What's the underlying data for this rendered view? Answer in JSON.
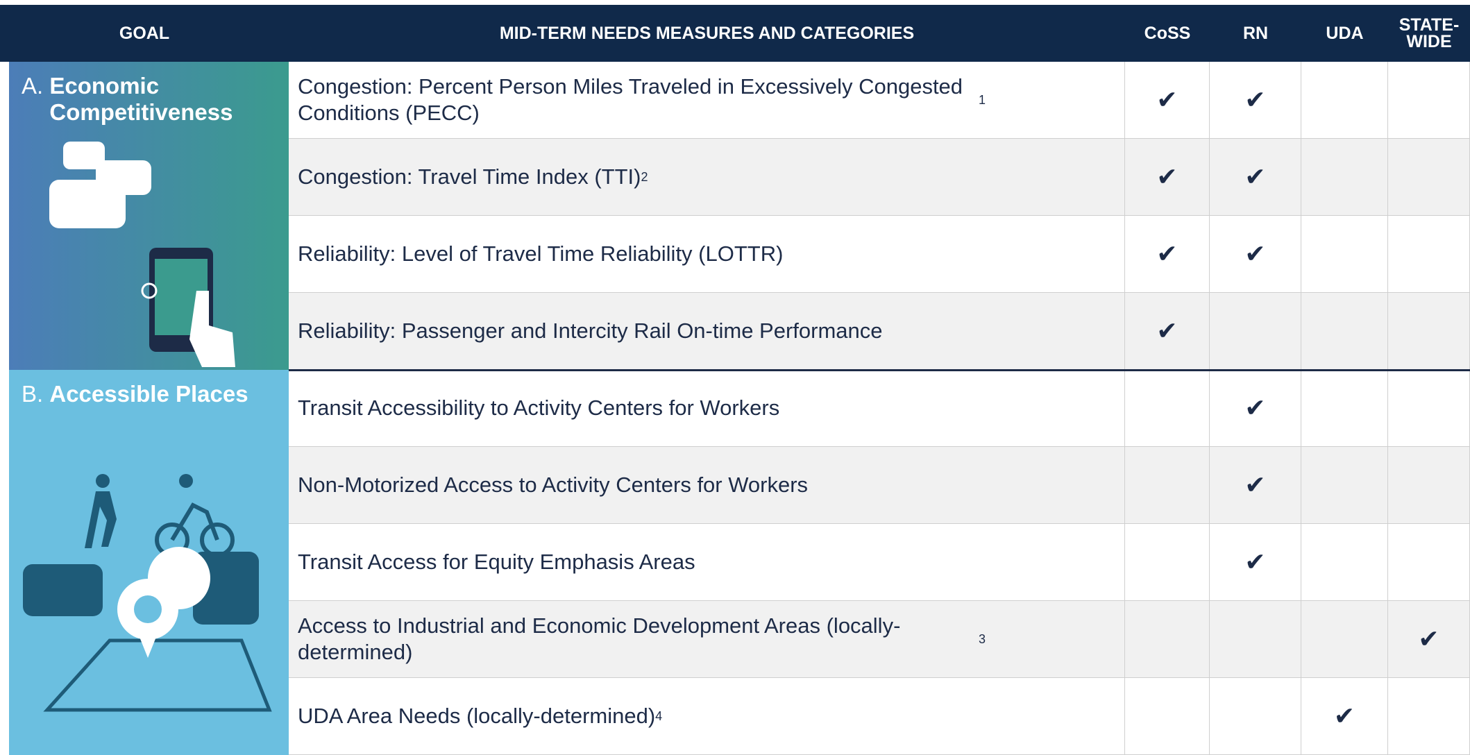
{
  "header": {
    "goal": "GOAL",
    "measures": "MID-TERM NEEDS MEASURES AND CATEGORIES",
    "coss": "CoSS",
    "rn": "RN",
    "uda": "UDA",
    "statewide": "STATE-WIDE"
  },
  "goals": [
    {
      "letter": "A.",
      "name": "Economic Competitiveness",
      "rows": 4
    },
    {
      "letter": "B.",
      "name": "Accessible Places",
      "rows": 5
    }
  ],
  "rows": [
    {
      "measure": "Congestion: Percent Person Miles Traveled in Excessively Congested Conditions (PECC)",
      "note": "1",
      "coss": "✔",
      "rn": "✔",
      "uda": null,
      "statewide": null
    },
    {
      "measure": "Congestion: Travel Time Index (TTI)",
      "note": "2",
      "coss": "✔",
      "rn": "✔",
      "uda": null,
      "statewide": null
    },
    {
      "measure": "Reliability: Level of Travel Time Reliability (LOTTR)",
      "note": null,
      "coss": "✔",
      "rn": "✔",
      "uda": null,
      "statewide": null
    },
    {
      "measure": "Reliability: Passenger and Intercity Rail On-time Performance",
      "note": null,
      "coss": "✔",
      "rn": null,
      "uda": null,
      "statewide": null
    },
    {
      "measure": "Transit Accessibility to Activity Centers for Workers",
      "note": null,
      "coss": null,
      "rn": "✔",
      "uda": null,
      "statewide": null
    },
    {
      "measure": "Non-Motorized Access to Activity Centers for Workers",
      "note": null,
      "coss": null,
      "rn": "✔",
      "uda": null,
      "statewide": null
    },
    {
      "measure": "Transit Access for Equity Emphasis Areas",
      "note": null,
      "coss": null,
      "rn": "✔",
      "uda": null,
      "statewide": null
    },
    {
      "measure": "Access to Industrial and Economic Development Areas  (locally-determined)",
      "note": "3",
      "coss": null,
      "rn": null,
      "uda": null,
      "statewide": "✔"
    },
    {
      "measure": "UDA Area Needs (locally-determined)",
      "note": "4",
      "coss": null,
      "rn": null,
      "uda": "✔",
      "statewide": null
    }
  ]
}
